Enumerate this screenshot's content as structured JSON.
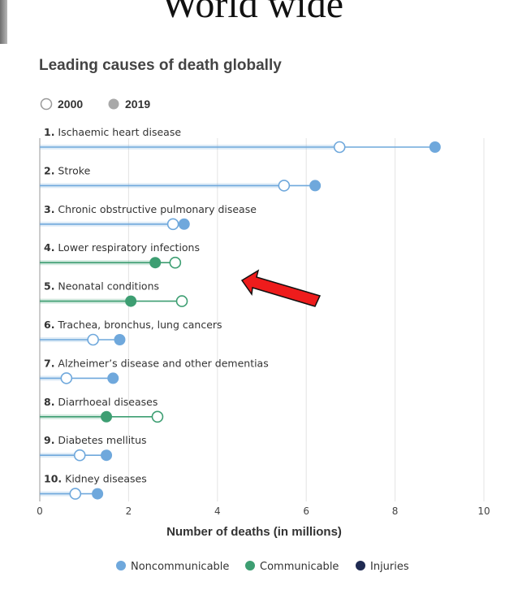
{
  "header": {
    "title": "World wide"
  },
  "chart_data": {
    "type": "dumbbell",
    "title": "Leading causes of death globally",
    "xlabel": "Number of deaths (in millions)",
    "xlim": [
      0,
      10
    ],
    "xticks": [
      0,
      2,
      4,
      6,
      8,
      10
    ],
    "grid": true,
    "year_legend": [
      {
        "label": "2000",
        "style": "hollow"
      },
      {
        "label": "2019",
        "style": "filled-gray"
      }
    ],
    "groups": [
      {
        "name": "Noncommunicable",
        "color": "#6fa8dc"
      },
      {
        "name": "Communicable",
        "color": "#3d9e72"
      },
      {
        "name": "Injuries",
        "color": "#1f2a52"
      }
    ],
    "categories": [
      {
        "rank": "1.",
        "name": "Ischaemic heart disease",
        "group": "Noncommunicable",
        "v2000": 6.75,
        "v2019": 8.9
      },
      {
        "rank": "2.",
        "name": "Stroke",
        "group": "Noncommunicable",
        "v2000": 5.5,
        "v2019": 6.2
      },
      {
        "rank": "3.",
        "name": "Chronic obstructive pulmonary disease",
        "group": "Noncommunicable",
        "v2000": 3.0,
        "v2019": 3.25
      },
      {
        "rank": "4.",
        "name": "Lower respiratory infections",
        "group": "Communicable",
        "v2000": 3.05,
        "v2019": 2.6
      },
      {
        "rank": "5.",
        "name": "Neonatal conditions",
        "group": "Communicable",
        "v2000": 3.2,
        "v2019": 2.05
      },
      {
        "rank": "6.",
        "name": "Trachea, bronchus, lung cancers",
        "group": "Noncommunicable",
        "v2000": 1.2,
        "v2019": 1.8
      },
      {
        "rank": "7.",
        "name": "Alzheimer’s disease and other dementias",
        "group": "Noncommunicable",
        "v2000": 0.6,
        "v2019": 1.65
      },
      {
        "rank": "8.",
        "name": "Diarrhoeal diseases",
        "group": "Communicable",
        "v2000": 2.65,
        "v2019": 1.5
      },
      {
        "rank": "9.",
        "name": "Diabetes mellitus",
        "group": "Noncommunicable",
        "v2000": 0.9,
        "v2019": 1.5
      },
      {
        "rank": "10.",
        "name": "Kidney diseases",
        "group": "Noncommunicable",
        "v2000": 0.8,
        "v2019": 1.3
      }
    ],
    "annotation": {
      "type": "arrow",
      "color": "#ee1c1c",
      "points_to": "Lower respiratory infections"
    }
  }
}
